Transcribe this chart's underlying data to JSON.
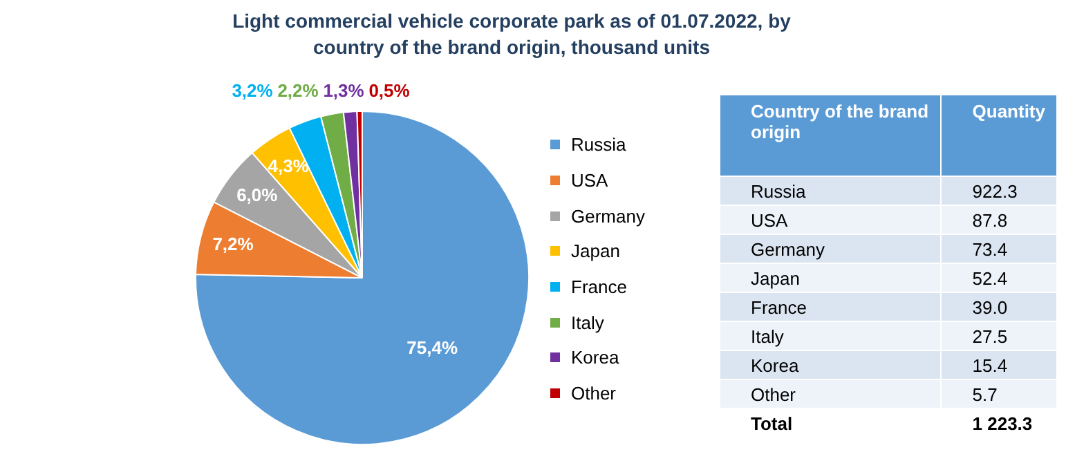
{
  "chart_data": {
    "type": "pie",
    "title": "Light commercial vehicle corporate park as of 01.07.2022, by country of the brand origin, thousand units",
    "categories": [
      "Russia",
      "USA",
      "Germany",
      "Japan",
      "France",
      "Italy",
      "Korea",
      "Other"
    ],
    "values": [
      75.4,
      7.2,
      6.0,
      4.3,
      3.2,
      2.2,
      1.3,
      0.5
    ],
    "value_labels": [
      "75,4%",
      "7,2%",
      "6,0%",
      "4,3%",
      "3,2%",
      "2,2%",
      "1,3%",
      "0,5%"
    ],
    "colors": [
      "#5b9bd5",
      "#ed7d31",
      "#a5a5a5",
      "#ffc000",
      "#00b0f0",
      "#70ad47",
      "#7030a0",
      "#c00000"
    ],
    "legend": "right",
    "annotations": [
      "Country of the brand origin",
      "Quantity",
      "922.3",
      "87.8",
      "73.4",
      "52.4",
      "39.0",
      "27.5",
      "15.4",
      "5.7",
      "Total",
      "1 223.3"
    ]
  }
}
